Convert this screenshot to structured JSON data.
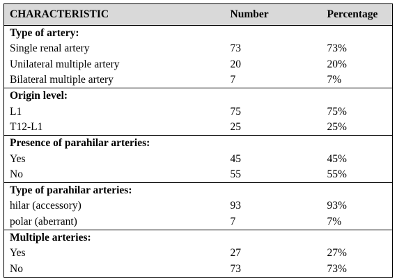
{
  "table": {
    "header": [
      "CHARACTERISTIC",
      "Number",
      "Percentage"
    ],
    "sections": [
      {
        "title": "Type of artery:",
        "rows": [
          [
            "Single renal artery",
            "73",
            "73%"
          ],
          [
            "Unilateral multiple artery",
            "20",
            "20%"
          ],
          [
            "Bilateral multiple artery",
            "7",
            "7%"
          ]
        ]
      },
      {
        "title": "Origin level:",
        "rows": [
          [
            "L1",
            "75",
            "75%"
          ],
          [
            "T12-L1",
            "25",
            "25%"
          ]
        ]
      },
      {
        "title": "Presence of parahilar arteries:",
        "rows": [
          [
            "Yes",
            "45",
            "45%"
          ],
          [
            "No",
            "55",
            "55%"
          ]
        ]
      },
      {
        "title": "Type of parahilar arteries:",
        "rows": [
          [
            "hilar (accessory)",
            "93",
            "93%"
          ],
          [
            "polar (aberrant)",
            "7",
            "7%"
          ]
        ]
      },
      {
        "title": "Multiple arteries:",
        "rows": [
          [
            "Yes",
            "27",
            "27%"
          ],
          [
            "No",
            "73",
            "73%"
          ]
        ]
      }
    ]
  }
}
